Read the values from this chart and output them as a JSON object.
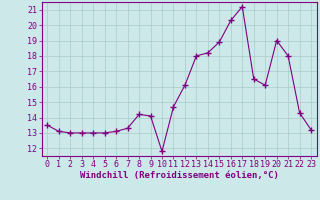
{
  "x": [
    0,
    1,
    2,
    3,
    4,
    5,
    6,
    7,
    8,
    9,
    10,
    11,
    12,
    13,
    14,
    15,
    16,
    17,
    18,
    19,
    20,
    21,
    22,
    23
  ],
  "y": [
    13.5,
    13.1,
    13.0,
    13.0,
    13.0,
    13.0,
    13.1,
    13.3,
    14.2,
    14.1,
    11.8,
    14.7,
    16.1,
    18.0,
    18.2,
    18.9,
    20.3,
    21.2,
    16.5,
    16.1,
    19.0,
    18.0,
    14.3,
    13.2
  ],
  "line_color": "#800080",
  "marker": "+",
  "marker_size": 4.0,
  "linewidth": 0.8,
  "xlabel": "Windchill (Refroidissement éolien,°C)",
  "xlabel_fontsize": 6.5,
  "ylim": [
    11.5,
    21.5
  ],
  "xlim": [
    -0.5,
    23.5
  ],
  "yticks": [
    12,
    13,
    14,
    15,
    16,
    17,
    18,
    19,
    20,
    21
  ],
  "xticks": [
    0,
    1,
    2,
    3,
    4,
    5,
    6,
    7,
    8,
    9,
    10,
    11,
    12,
    13,
    14,
    15,
    16,
    17,
    18,
    19,
    20,
    21,
    22,
    23
  ],
  "bg_color": "#cce8e8",
  "grid_color": "#aacccc",
  "tick_fontsize": 6,
  "tick_color": "#800080",
  "label_color": "#800080",
  "spine_color": "#800080"
}
